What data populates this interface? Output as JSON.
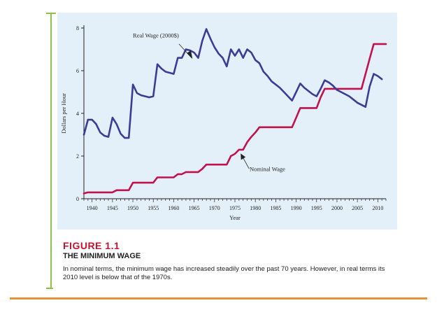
{
  "chart_data": {
    "type": "line",
    "ylabel": "Dollars per Hour",
    "xlabel": "Year",
    "xlim": [
      1938,
      2012
    ],
    "ylim": [
      0,
      8
    ],
    "yticks": [
      0,
      2,
      4,
      6,
      8
    ],
    "xticks": [
      1940,
      1945,
      1950,
      1955,
      1960,
      1965,
      1970,
      1975,
      1980,
      1985,
      1990,
      1995,
      2000,
      2005,
      2010
    ],
    "grid": false,
    "series": [
      {
        "name": "Real Wage (2000$)",
        "color": "#3c3c96",
        "points": [
          [
            1938,
            3.0
          ],
          [
            1939,
            3.7
          ],
          [
            1940,
            3.7
          ],
          [
            1941,
            3.5
          ],
          [
            1942,
            3.1
          ],
          [
            1943,
            2.95
          ],
          [
            1944,
            2.9
          ],
          [
            1945,
            3.8
          ],
          [
            1946,
            3.5
          ],
          [
            1947,
            3.05
          ],
          [
            1948,
            2.85
          ],
          [
            1949,
            2.85
          ],
          [
            1950,
            5.35
          ],
          [
            1951,
            4.95
          ],
          [
            1952,
            4.85
          ],
          [
            1953,
            4.8
          ],
          [
            1954,
            4.75
          ],
          [
            1955,
            4.8
          ],
          [
            1956,
            6.3
          ],
          [
            1957,
            6.1
          ],
          [
            1958,
            5.95
          ],
          [
            1959,
            5.9
          ],
          [
            1960,
            5.85
          ],
          [
            1961,
            6.6
          ],
          [
            1962,
            6.6
          ],
          [
            1963,
            7.0
          ],
          [
            1964,
            6.95
          ],
          [
            1965,
            6.85
          ],
          [
            1966,
            6.6
          ],
          [
            1967,
            7.4
          ],
          [
            1968,
            7.95
          ],
          [
            1969,
            7.5
          ],
          [
            1970,
            7.1
          ],
          [
            1971,
            6.8
          ],
          [
            1972,
            6.6
          ],
          [
            1973,
            6.2
          ],
          [
            1974,
            7.0
          ],
          [
            1975,
            6.7
          ],
          [
            1976,
            7.0
          ],
          [
            1977,
            6.6
          ],
          [
            1978,
            7.0
          ],
          [
            1979,
            6.85
          ],
          [
            1980,
            6.5
          ],
          [
            1981,
            6.35
          ],
          [
            1982,
            5.95
          ],
          [
            1983,
            5.75
          ],
          [
            1984,
            5.5
          ],
          [
            1985,
            5.35
          ],
          [
            1986,
            5.2
          ],
          [
            1987,
            5.0
          ],
          [
            1988,
            4.8
          ],
          [
            1989,
            4.6
          ],
          [
            1990,
            5.0
          ],
          [
            1991,
            5.4
          ],
          [
            1992,
            5.2
          ],
          [
            1993,
            5.05
          ],
          [
            1994,
            4.9
          ],
          [
            1995,
            4.8
          ],
          [
            1996,
            5.15
          ],
          [
            1997,
            5.55
          ],
          [
            1998,
            5.45
          ],
          [
            1999,
            5.3
          ],
          [
            2000,
            5.1
          ],
          [
            2001,
            5.0
          ],
          [
            2002,
            4.9
          ],
          [
            2003,
            4.8
          ],
          [
            2004,
            4.65
          ],
          [
            2005,
            4.5
          ],
          [
            2006,
            4.4
          ],
          [
            2007,
            4.3
          ],
          [
            2008,
            5.25
          ],
          [
            2009,
            5.85
          ],
          [
            2010,
            5.75
          ],
          [
            2011,
            5.6
          ]
        ]
      },
      {
        "name": "Nominal Wage",
        "color": "#c0134d",
        "points": [
          [
            1938,
            0.25
          ],
          [
            1939,
            0.3
          ],
          [
            1945,
            0.3
          ],
          [
            1946,
            0.4
          ],
          [
            1949,
            0.4
          ],
          [
            1950,
            0.75
          ],
          [
            1955,
            0.75
          ],
          [
            1956,
            1.0
          ],
          [
            1960,
            1.0
          ],
          [
            1961,
            1.15
          ],
          [
            1962,
            1.15
          ],
          [
            1963,
            1.25
          ],
          [
            1966,
            1.25
          ],
          [
            1967,
            1.4
          ],
          [
            1968,
            1.6
          ],
          [
            1973,
            1.6
          ],
          [
            1974,
            2.0
          ],
          [
            1975,
            2.1
          ],
          [
            1976,
            2.3
          ],
          [
            1977,
            2.3
          ],
          [
            1978,
            2.65
          ],
          [
            1979,
            2.9
          ],
          [
            1980,
            3.1
          ],
          [
            1981,
            3.35
          ],
          [
            1989,
            3.35
          ],
          [
            1990,
            3.8
          ],
          [
            1991,
            4.25
          ],
          [
            1995,
            4.25
          ],
          [
            1996,
            4.75
          ],
          [
            1997,
            5.15
          ],
          [
            2006,
            5.15
          ],
          [
            2007,
            5.85
          ],
          [
            2008,
            6.55
          ],
          [
            2009,
            7.25
          ],
          [
            2012,
            7.25
          ]
        ]
      }
    ],
    "annotations": [
      {
        "text": "Real Wage (2000$)",
        "series": "Real Wage (2000$)"
      },
      {
        "text": "Nominal Wage",
        "series": "Nominal Wage"
      }
    ]
  },
  "caption": {
    "figure_label": "FIGURE 1.1",
    "figure_title": "THE MINIMUM WAGE",
    "text": "In nominal terms, the minimum wage has increased steadily over the past 70 years. However, in real terms its 2010 level is below that of the 1970s."
  },
  "colors": {
    "panel_bg": "#e4f0f9",
    "accent_green": "#8bc34a",
    "accent_orange": "#e8923a",
    "figure_red": "#c4122f"
  }
}
